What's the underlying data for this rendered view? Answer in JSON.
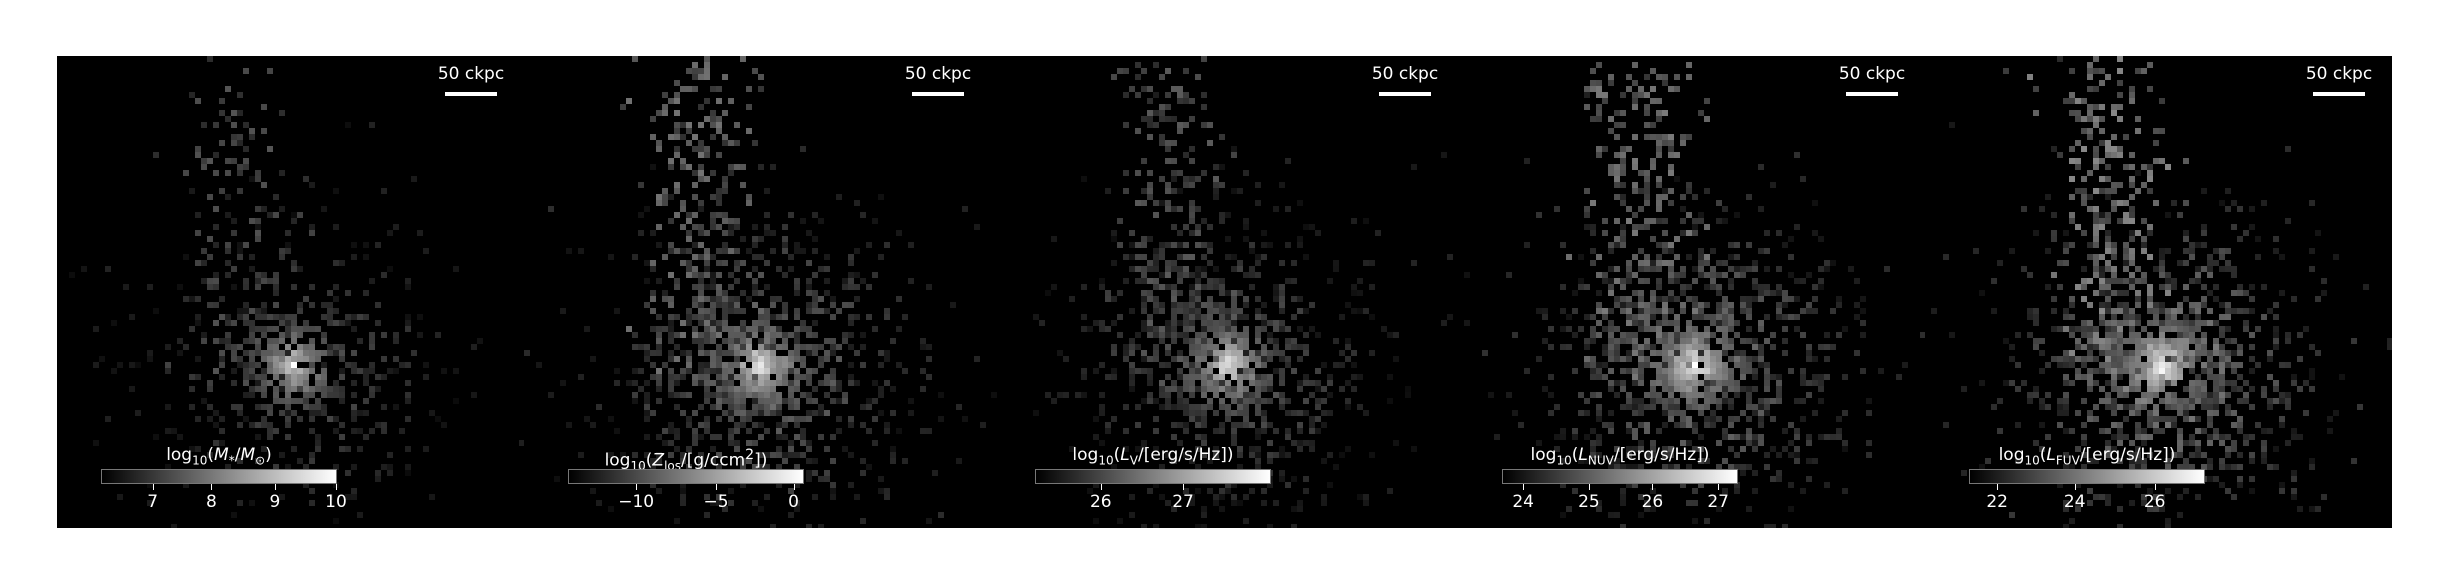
{
  "figure": {
    "panels": [
      {
        "id": "stellar-mass",
        "scalebar": "50 ckpc",
        "colorbar_label": "log<sub>10</sub>(<i>M</i><sub>*</sub>/<i>M</i><sub>⊙</sub>)",
        "ticks": [
          {
            "label": "7",
            "frac": 0.22
          },
          {
            "label": "8",
            "frac": 0.47
          },
          {
            "label": "9",
            "frac": 0.74
          },
          {
            "label": "10",
            "frac": 1.0
          }
        ],
        "map": {
          "seed": 11,
          "spread": 0.5,
          "brightness": 0.55,
          "core": 0.85
        }
      },
      {
        "id": "metallicity",
        "scalebar": "50 ckpc",
        "colorbar_label": "log<sub>10</sub>(<i>Z</i><sub>los</sub>/[g/ccm<sup>2</sup>])",
        "ticks": [
          {
            "label": "−10",
            "frac": 0.29
          },
          {
            "label": "−5",
            "frac": 0.63
          },
          {
            "label": "0",
            "frac": 0.96
          }
        ],
        "map": {
          "seed": 23,
          "spread": 1.0,
          "brightness": 0.75,
          "core": 0.95
        }
      },
      {
        "id": "v-band",
        "scalebar": "50 ckpc",
        "colorbar_label": "log<sub>10</sub>(<i>L</i><sub>V</sub>/[erg/s/Hz])",
        "ticks": [
          {
            "label": "26",
            "frac": 0.28
          },
          {
            "label": "27",
            "frac": 0.63
          }
        ],
        "map": {
          "seed": 37,
          "spread": 0.9,
          "brightness": 0.6,
          "core": 0.95
        }
      },
      {
        "id": "nuv",
        "scalebar": "50 ckpc",
        "colorbar_label": "log<sub>10</sub>(<i>L</i><sub>NUV</sub>/[erg/s/Hz])",
        "ticks": [
          {
            "label": "24",
            "frac": 0.09
          },
          {
            "label": "25",
            "frac": 0.37
          },
          {
            "label": "26",
            "frac": 0.64
          },
          {
            "label": "27",
            "frac": 0.92
          }
        ],
        "map": {
          "seed": 53,
          "spread": 1.05,
          "brightness": 0.8,
          "core": 1.0
        }
      },
      {
        "id": "fuv",
        "scalebar": "50 ckpc",
        "colorbar_label": "log<sub>10</sub>(<i>L</i><sub>FUV</sub>/[erg/s/Hz])",
        "ticks": [
          {
            "label": "22",
            "frac": 0.12
          },
          {
            "label": "24",
            "frac": 0.45
          },
          {
            "label": "26",
            "frac": 0.79
          }
        ],
        "map": {
          "seed": 71,
          "spread": 1.1,
          "brightness": 0.9,
          "core": 1.0
        }
      }
    ]
  }
}
